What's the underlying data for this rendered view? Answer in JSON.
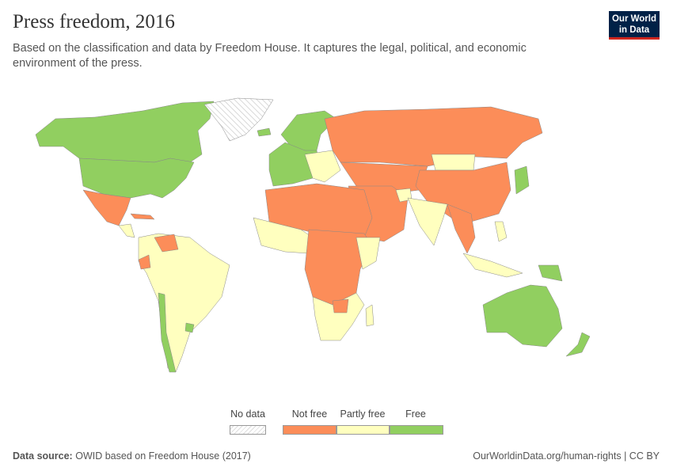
{
  "header": {
    "title": "Press freedom, 2016",
    "subtitle": "Based on the classification and data by Freedom House. It captures the legal, political, and economic environment of the press.",
    "logo_text": "Our World in Data"
  },
  "legend": {
    "no_data_label": "No data",
    "categories": [
      {
        "label": "Not free",
        "color": "#fc8d59"
      },
      {
        "label": "Partly free",
        "color": "#ffffbf"
      },
      {
        "label": "Free",
        "color": "#91cf60"
      }
    ]
  },
  "footer": {
    "source_label": "Data source:",
    "source_text": "OWID based on Freedom House (2017)",
    "url_license": "OurWorldinData.org/human-rights | CC BY"
  }
}
